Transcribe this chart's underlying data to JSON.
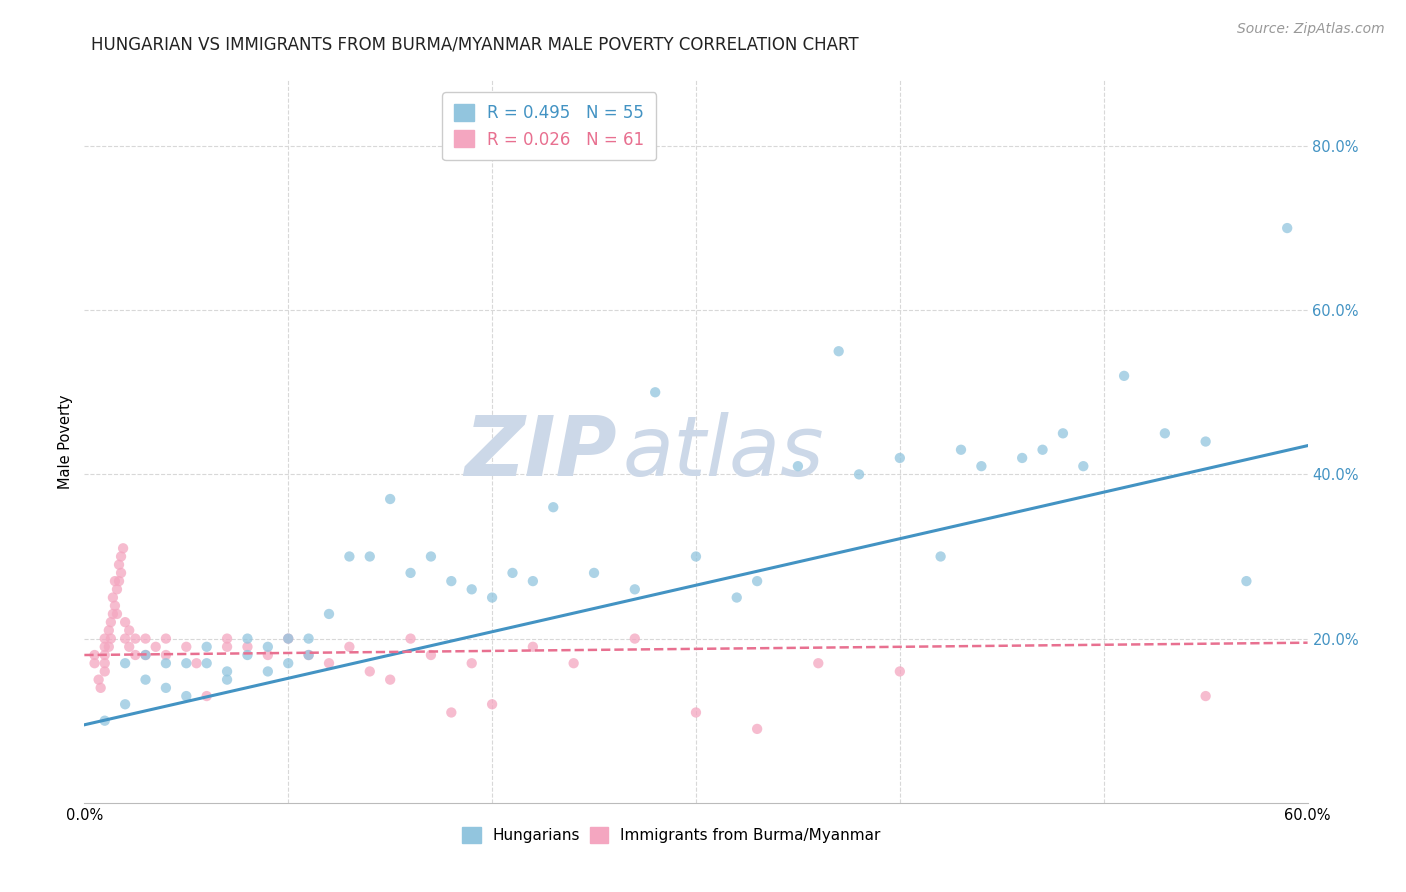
{
  "title": "HUNGARIAN VS IMMIGRANTS FROM BURMA/MYANMAR MALE POVERTY CORRELATION CHART",
  "source": "Source: ZipAtlas.com",
  "ylabel": "Male Poverty",
  "ylabel_right_ticks": [
    "20.0%",
    "40.0%",
    "60.0%",
    "80.0%"
  ],
  "ylabel_right_vals": [
    0.2,
    0.4,
    0.6,
    0.8
  ],
  "xlim": [
    0.0,
    0.6
  ],
  "ylim": [
    0.0,
    0.88
  ],
  "legend_r1": "R = 0.495",
  "legend_n1": "N = 55",
  "legend_r2": "R = 0.026",
  "legend_n2": "N = 61",
  "color_blue": "#92c5de",
  "color_pink": "#f4a6c0",
  "color_blue_line": "#4393c3",
  "color_pink_line": "#e87090",
  "blue_scatter_x": [
    0.01,
    0.02,
    0.02,
    0.03,
    0.03,
    0.04,
    0.04,
    0.05,
    0.05,
    0.06,
    0.06,
    0.07,
    0.07,
    0.08,
    0.08,
    0.09,
    0.09,
    0.1,
    0.1,
    0.11,
    0.11,
    0.12,
    0.13,
    0.14,
    0.15,
    0.16,
    0.17,
    0.18,
    0.19,
    0.2,
    0.21,
    0.22,
    0.23,
    0.25,
    0.27,
    0.28,
    0.3,
    0.32,
    0.33,
    0.35,
    0.37,
    0.38,
    0.4,
    0.42,
    0.43,
    0.44,
    0.46,
    0.47,
    0.48,
    0.49,
    0.51,
    0.53,
    0.55,
    0.57,
    0.59
  ],
  "blue_scatter_y": [
    0.1,
    0.17,
    0.12,
    0.15,
    0.18,
    0.14,
    0.17,
    0.13,
    0.17,
    0.17,
    0.19,
    0.15,
    0.16,
    0.18,
    0.2,
    0.16,
    0.19,
    0.17,
    0.2,
    0.18,
    0.2,
    0.23,
    0.3,
    0.3,
    0.37,
    0.28,
    0.3,
    0.27,
    0.26,
    0.25,
    0.28,
    0.27,
    0.36,
    0.28,
    0.26,
    0.5,
    0.3,
    0.25,
    0.27,
    0.41,
    0.55,
    0.4,
    0.42,
    0.3,
    0.43,
    0.41,
    0.42,
    0.43,
    0.45,
    0.41,
    0.52,
    0.45,
    0.44,
    0.27,
    0.7
  ],
  "pink_scatter_x": [
    0.005,
    0.005,
    0.007,
    0.008,
    0.01,
    0.01,
    0.01,
    0.01,
    0.01,
    0.012,
    0.012,
    0.013,
    0.013,
    0.014,
    0.014,
    0.015,
    0.015,
    0.016,
    0.016,
    0.017,
    0.017,
    0.018,
    0.018,
    0.019,
    0.02,
    0.02,
    0.022,
    0.022,
    0.025,
    0.025,
    0.03,
    0.03,
    0.035,
    0.04,
    0.04,
    0.05,
    0.055,
    0.06,
    0.07,
    0.07,
    0.08,
    0.09,
    0.1,
    0.11,
    0.12,
    0.13,
    0.14,
    0.15,
    0.16,
    0.17,
    0.18,
    0.19,
    0.2,
    0.22,
    0.24,
    0.27,
    0.3,
    0.33,
    0.36,
    0.4,
    0.55
  ],
  "pink_scatter_y": [
    0.18,
    0.17,
    0.15,
    0.14,
    0.19,
    0.2,
    0.18,
    0.17,
    0.16,
    0.21,
    0.19,
    0.22,
    0.2,
    0.25,
    0.23,
    0.27,
    0.24,
    0.26,
    0.23,
    0.29,
    0.27,
    0.3,
    0.28,
    0.31,
    0.2,
    0.22,
    0.19,
    0.21,
    0.18,
    0.2,
    0.2,
    0.18,
    0.19,
    0.2,
    0.18,
    0.19,
    0.17,
    0.13,
    0.2,
    0.19,
    0.19,
    0.18,
    0.2,
    0.18,
    0.17,
    0.19,
    0.16,
    0.15,
    0.2,
    0.18,
    0.11,
    0.17,
    0.12,
    0.19,
    0.17,
    0.2,
    0.11,
    0.09,
    0.17,
    0.16,
    0.13
  ],
  "blue_line_x": [
    0.0,
    0.6
  ],
  "blue_line_y": [
    0.095,
    0.435
  ],
  "pink_line_x": [
    0.0,
    0.6
  ],
  "pink_line_y": [
    0.18,
    0.195
  ],
  "marker_size": 55,
  "alpha": 0.75,
  "grid_color": "#d8d8d8",
  "background_color": "#ffffff",
  "title_fontsize": 12,
  "axis_fontsize": 10.5,
  "source_fontsize": 10,
  "watermark_top": "ZIP",
  "watermark_bot": "atlas",
  "watermark_color": "#ccd8e8",
  "watermark_fontsize": 60
}
